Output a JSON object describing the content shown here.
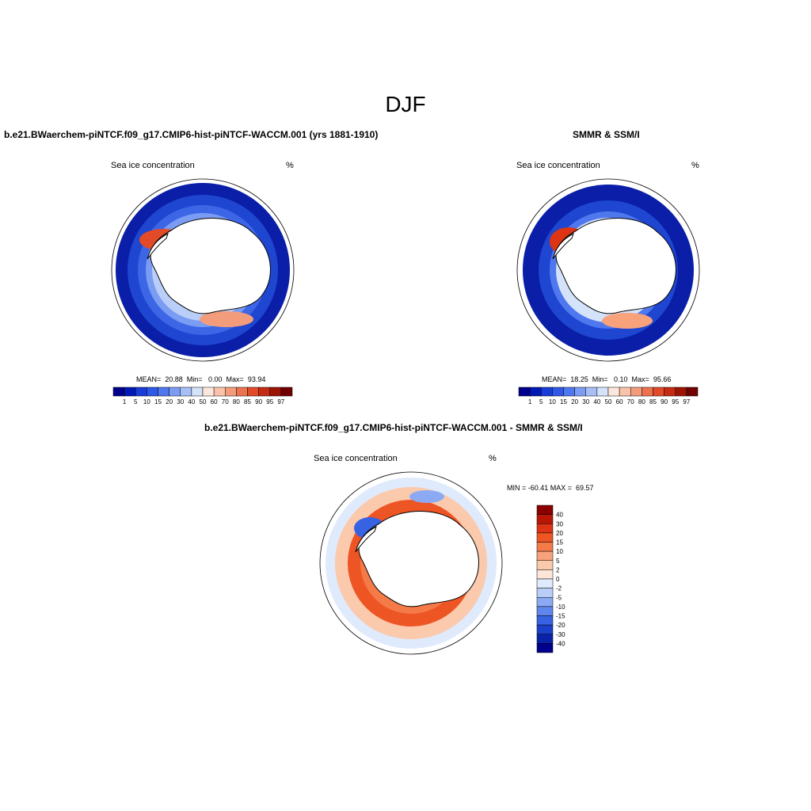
{
  "figure_title": "DJF",
  "panels": {
    "model": {
      "case_title": "b.e21.BWaerchem-piNTCF.f09_g17.CMIP6-hist-piNTCF-WACCM.001 (yrs 1881-1910)",
      "variable": "Sea ice concentration",
      "units": "%",
      "stats": "MEAN=  20.88  Min=   0.00  Max=  93.94"
    },
    "obs": {
      "case_title": "SMMR & SSM/I",
      "variable": "Sea ice concentration",
      "units": "%",
      "stats": "MEAN=  18.25  Min=   0.10  Max=  95.66"
    },
    "diff": {
      "case_title": "b.e21.BWaerchem-piNTCF.f09_g17.CMIP6-hist-piNTCF-WACCM.001 - SMMR & SSM/I",
      "variable": "Sea ice concentration",
      "units": "%",
      "minmax": "MIN = -60.41 MAX =  69.57"
    }
  },
  "colorbar_abs": {
    "labels": [
      "1",
      "5",
      "10",
      "15",
      "20",
      "30",
      "40",
      "50",
      "60",
      "70",
      "80",
      "85",
      "90",
      "95",
      "97"
    ],
    "colors": [
      "#00008c",
      "#0019b4",
      "#1a3cd8",
      "#2f58e6",
      "#5078ee",
      "#7b9cf2",
      "#a7bef6",
      "#d4e2fa",
      "#fde7dc",
      "#f8c3aa",
      "#f39c7c",
      "#ec7350",
      "#e24a28",
      "#c52a12",
      "#9b1404",
      "#700000"
    ]
  },
  "colorbar_diff": {
    "labels": [
      "40",
      "30",
      "20",
      "15",
      "10",
      "5",
      "2",
      "0",
      "-2",
      "-5",
      "-10",
      "-15",
      "-20",
      "-30",
      "-40"
    ],
    "colors": [
      "#8c0000",
      "#b81606",
      "#dc3414",
      "#ee5524",
      "#f47a48",
      "#f8a27c",
      "#fbc9ac",
      "#fde6d8",
      "#dfeafc",
      "#b8cdf8",
      "#8caaf3",
      "#5f86ec",
      "#3762e2",
      "#1a40cc",
      "#0a22a8",
      "#00008c"
    ]
  }
}
